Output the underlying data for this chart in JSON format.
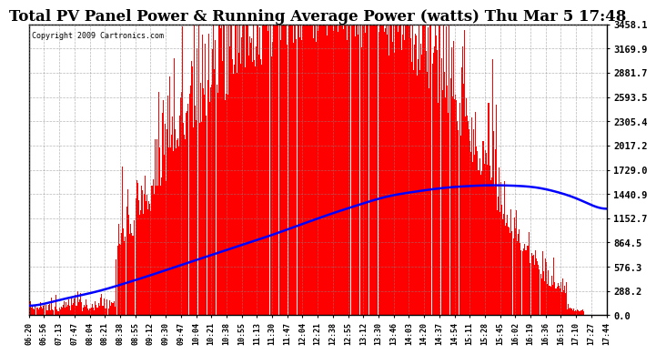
{
  "title": "Total PV Panel Power & Running Average Power (watts) Thu Mar 5 17:48",
  "copyright": "Copyright 2009 Cartronics.com",
  "yticks": [
    0.0,
    288.2,
    576.3,
    864.5,
    1152.7,
    1440.9,
    1729.0,
    2017.2,
    2305.4,
    2593.5,
    2881.7,
    3169.9,
    3458.1
  ],
  "ymax": 3458.1,
  "xtick_labels": [
    "06:20",
    "06:56",
    "07:13",
    "07:47",
    "08:04",
    "08:21",
    "08:38",
    "08:55",
    "09:12",
    "09:30",
    "09:47",
    "10:04",
    "10:21",
    "10:38",
    "10:55",
    "11:13",
    "11:30",
    "11:47",
    "12:04",
    "12:21",
    "12:38",
    "12:55",
    "13:12",
    "13:30",
    "13:46",
    "14:03",
    "14:20",
    "14:37",
    "14:54",
    "15:11",
    "15:28",
    "15:45",
    "16:02",
    "16:19",
    "16:36",
    "16:53",
    "17:10",
    "17:27",
    "17:44"
  ],
  "background_color": "#ffffff",
  "bar_color": "#ff0000",
  "line_color": "#0000ff",
  "grid_color": "#888888",
  "title_fontsize": 12,
  "fig_width": 6.9,
  "fig_height": 3.75,
  "avg_control_x": [
    0.0,
    0.05,
    0.12,
    0.2,
    0.3,
    0.42,
    0.52,
    0.62,
    0.72,
    0.8,
    0.88,
    0.95,
    1.0
  ],
  "avg_control_y": [
    80,
    180,
    280,
    450,
    680,
    950,
    1200,
    1420,
    1520,
    1550,
    1530,
    1400,
    1200
  ]
}
